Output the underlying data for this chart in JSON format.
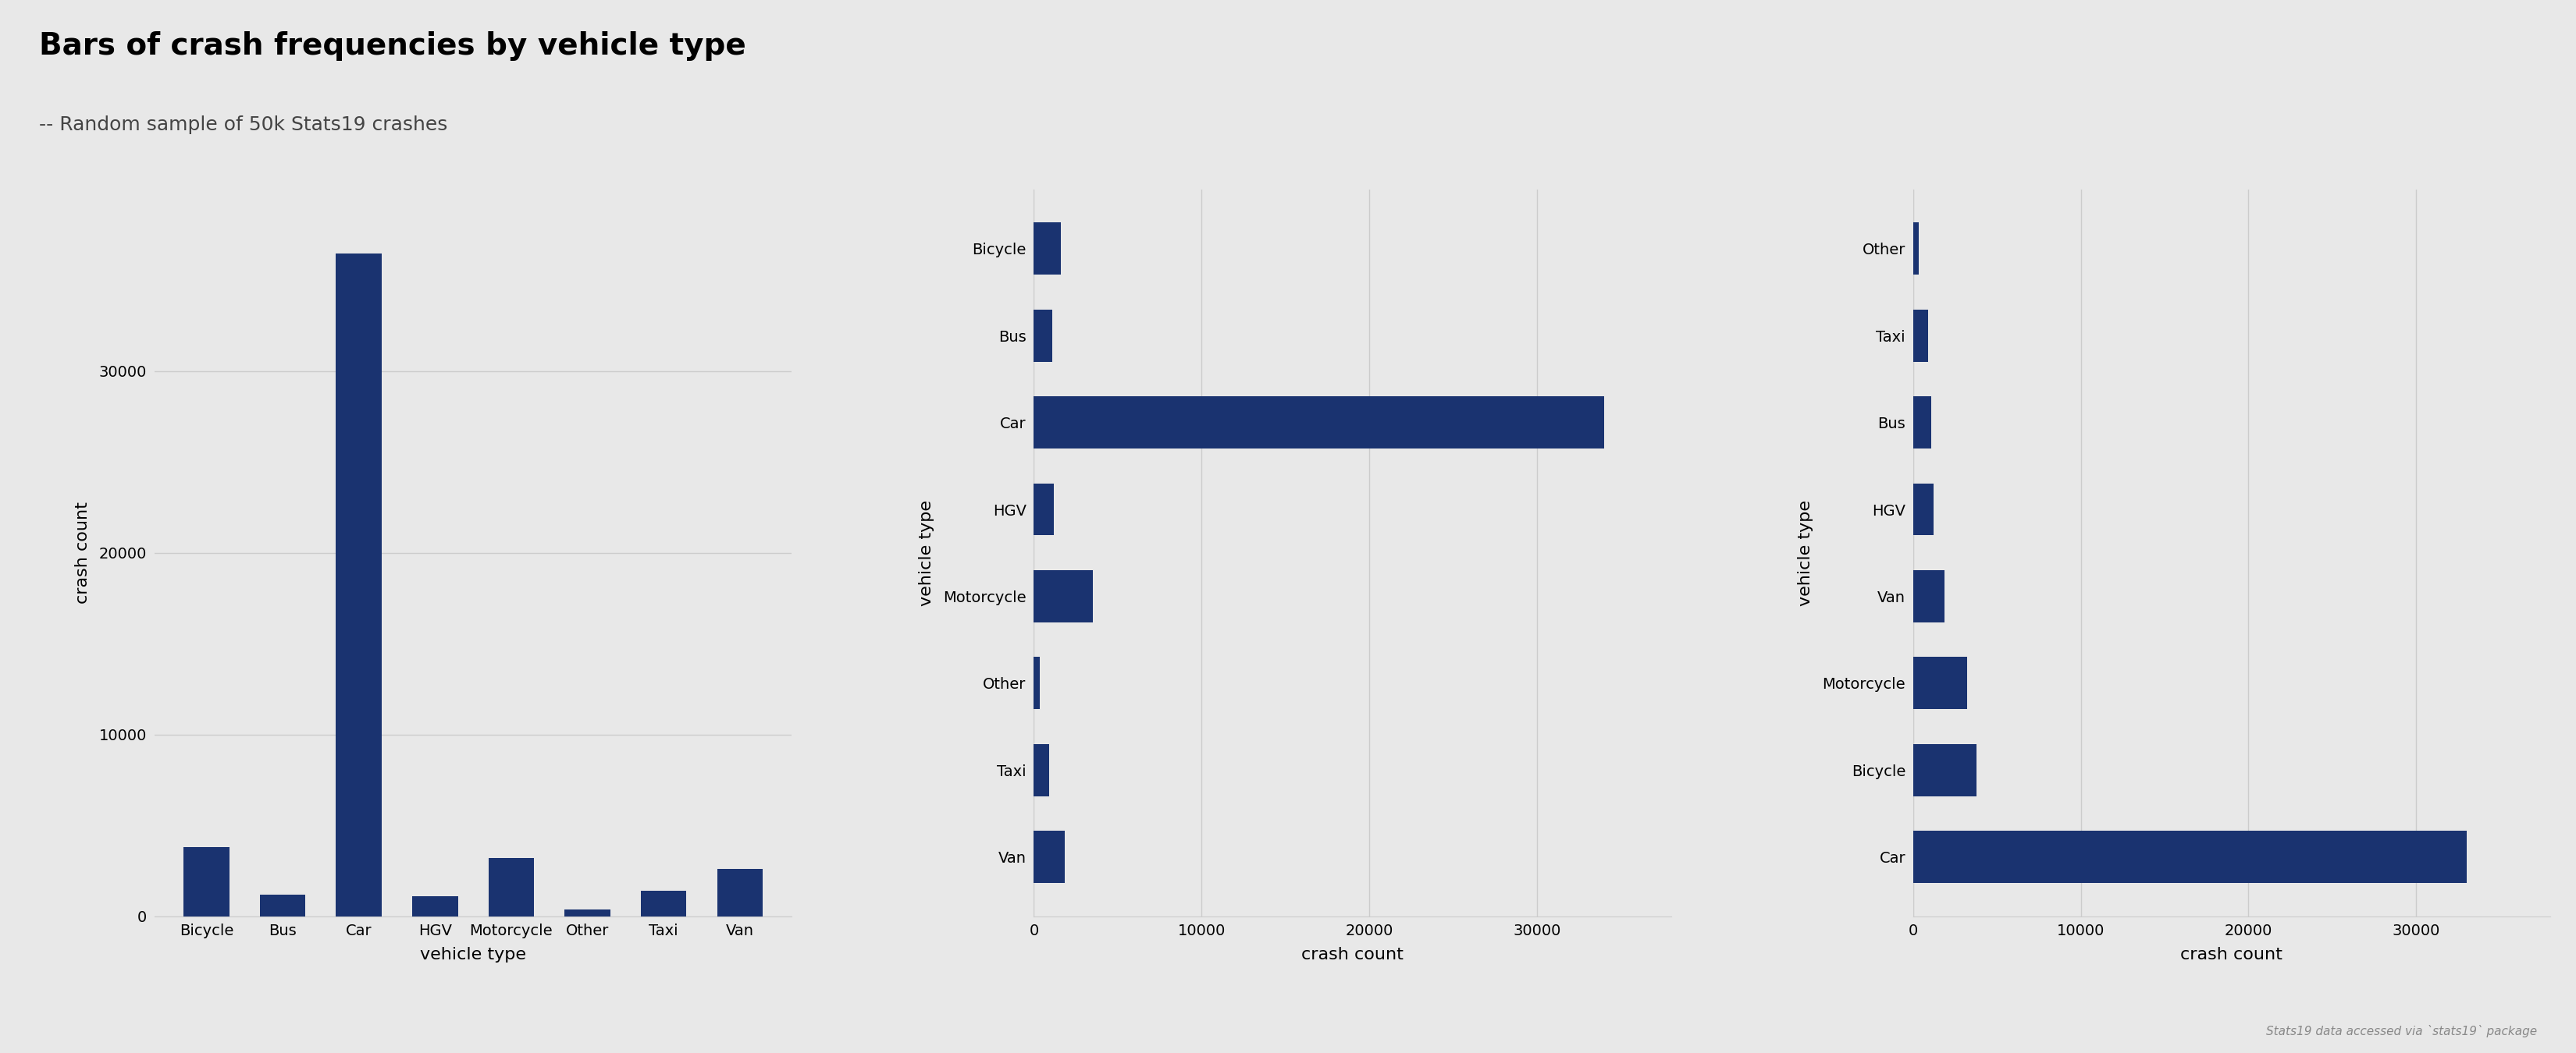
{
  "title": "Bars of crash frequencies by vehicle type",
  "subtitle": "-- Random sample of 50k Stats19 crashes",
  "footnote": "Stats19 data accessed via `stats19` package",
  "bar_color": "#1a3370",
  "background_color": "#e8e8e8",
  "plot1": {
    "type": "vertical",
    "categories": [
      "Bicycle",
      "Bus",
      "Car",
      "HGV",
      "Motorcycle",
      "Other",
      "Taxi",
      "Van"
    ],
    "values": [
      3800,
      1200,
      36500,
      1100,
      3200,
      350,
      1400,
      2600
    ],
    "xlabel": "vehicle type",
    "ylabel": "crash count",
    "yticks": [
      0,
      10000,
      20000,
      30000
    ],
    "ylim": [
      0,
      40000
    ]
  },
  "plot2": {
    "type": "horizontal",
    "categories": [
      "Van",
      "Taxi",
      "Other",
      "Motorcycle",
      "HGV",
      "Car",
      "Bus",
      "Bicycle"
    ],
    "values": [
      1850,
      900,
      350,
      3500,
      1200,
      34000,
      1100,
      1600
    ],
    "xlabel": "crash count",
    "ylabel": "vehicle type",
    "xticks": [
      0,
      10000,
      20000,
      30000
    ],
    "xlim": [
      0,
      38000
    ]
  },
  "plot3": {
    "type": "horizontal",
    "categories": [
      "Car",
      "Bicycle",
      "Motorcycle",
      "Van",
      "HGV",
      "Bus",
      "Taxi",
      "Other"
    ],
    "values": [
      33000,
      3800,
      3200,
      1850,
      1200,
      1100,
      900,
      350
    ],
    "xlabel": "crash count",
    "ylabel": "vehicle type",
    "xticks": [
      0,
      10000,
      20000,
      30000
    ],
    "xlim": [
      0,
      38000
    ]
  },
  "title_fontsize": 28,
  "subtitle_fontsize": 18,
  "axis_label_fontsize": 16,
  "tick_fontsize": 14,
  "footnote_fontsize": 11
}
